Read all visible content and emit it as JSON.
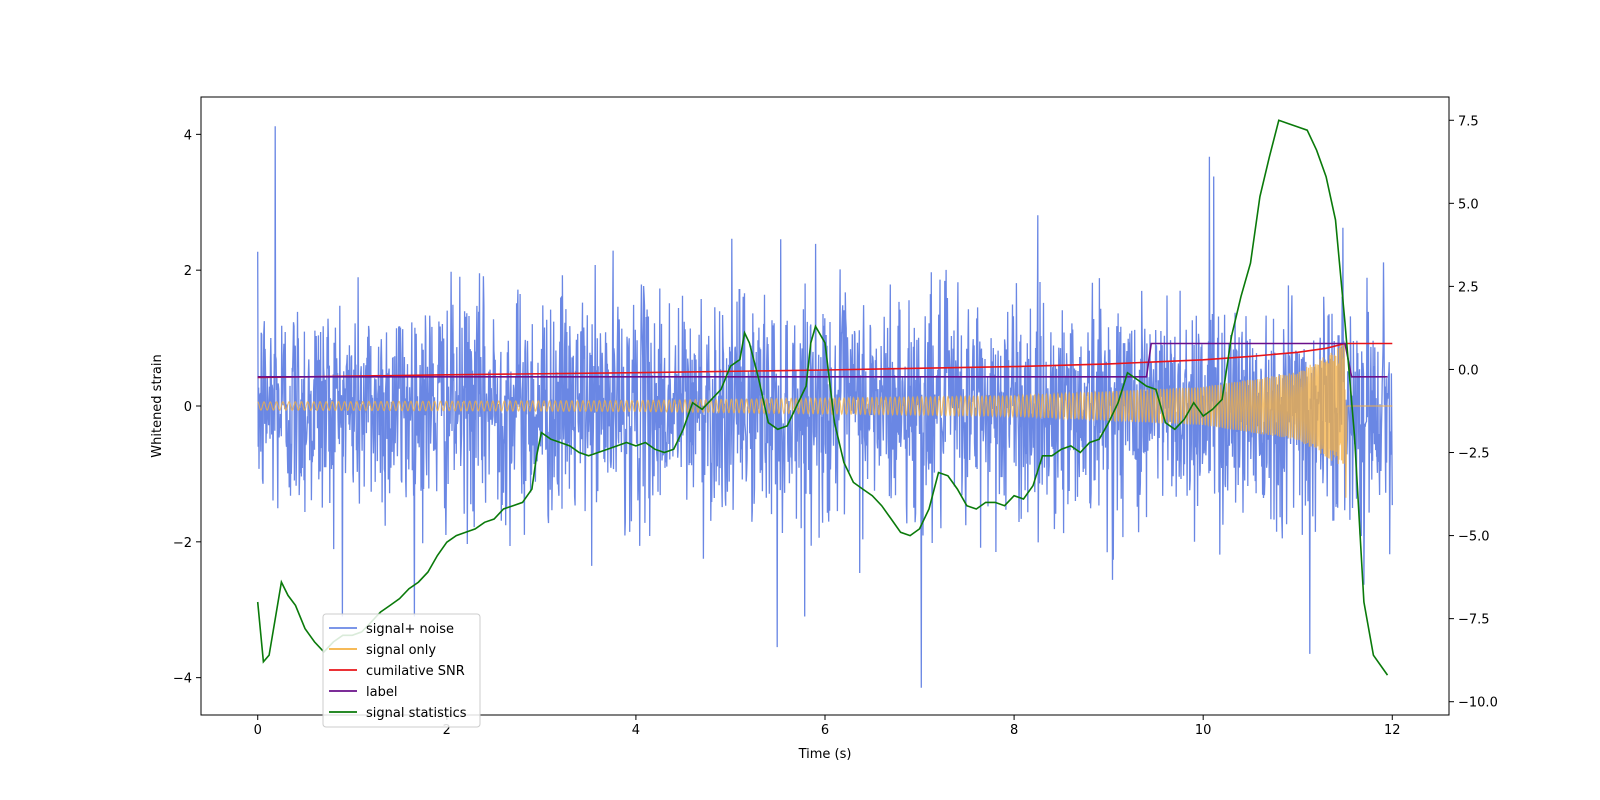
{
  "chart_data": {
    "type": "line",
    "xlabel": "Time (s)",
    "ylabel": "Whitened strain",
    "xlim": [
      -0.6,
      12.6
    ],
    "ylim": [
      -4.55,
      4.55
    ],
    "y2lim": [
      -10.4,
      8.2
    ],
    "xticks": [
      0,
      2,
      4,
      6,
      8,
      10,
      12
    ],
    "xtick_labels": [
      "0",
      "2",
      "4",
      "6",
      "8",
      "10",
      "12"
    ],
    "yticks": [
      -4,
      -2,
      0,
      2,
      4
    ],
    "ytick_labels": [
      "−4",
      "−2",
      "0",
      "2",
      "4"
    ],
    "y2ticks": [
      -10,
      -7.5,
      -5,
      -2.5,
      0,
      2.5,
      5,
      7.5
    ],
    "y2tick_labels": [
      "−10.0",
      "−7.5",
      "−5.0",
      "−2.5",
      "0.0",
      "2.5",
      "5.0",
      "7.5"
    ],
    "legend_location": "lower-left",
    "series": [
      {
        "name": "signal+ noise",
        "color": "#6a87e4",
        "axis": "left",
        "description": "whitened noise with injected chirp",
        "x_range": [
          0,
          12
        ],
        "noise_sigma": 1.05,
        "peak_values": [
          4.12,
          3.67,
          3.38,
          -4.15,
          -3.55,
          -3.65
        ]
      },
      {
        "name": "signal only",
        "color": "#f5b041",
        "axis": "left",
        "description": "chirp waveform, amplitude growing until merger",
        "x_range": [
          0,
          12
        ],
        "merger_time": 11.5,
        "amplitude_envelope": {
          "x": [
            0,
            4,
            8,
            10,
            11,
            11.3,
            11.5
          ],
          "y": [
            0.06,
            0.08,
            0.15,
            0.28,
            0.5,
            0.75,
            0.95
          ]
        }
      },
      {
        "name": "cumilative SNR",
        "color": "#e8141a",
        "axis": "left",
        "x": [
          0,
          2,
          4,
          6,
          8,
          9,
          10,
          10.5,
          11,
          11.3,
          11.5,
          12
        ],
        "y": [
          0.42,
          0.46,
          0.49,
          0.53,
          0.58,
          0.62,
          0.68,
          0.73,
          0.79,
          0.85,
          0.92,
          0.92
        ]
      },
      {
        "name": "label",
        "color": "#6a0f8a",
        "axis": "left",
        "x": [
          0,
          9.4,
          9.45,
          11.5,
          11.57,
          11.95
        ],
        "y": [
          0.43,
          0.43,
          0.92,
          0.92,
          0.43,
          0.43
        ]
      },
      {
        "name": "signal statistics",
        "color": "#0a7a0a",
        "axis": "right",
        "x": [
          0,
          0.06,
          0.12,
          0.18,
          0.25,
          0.32,
          0.4,
          0.5,
          0.6,
          0.7,
          0.8,
          0.9,
          1.0,
          1.1,
          1.2,
          1.3,
          1.4,
          1.5,
          1.6,
          1.7,
          1.8,
          1.9,
          2.0,
          2.1,
          2.2,
          2.3,
          2.4,
          2.5,
          2.6,
          2.7,
          2.8,
          2.9,
          2.95,
          3.0,
          3.1,
          3.2,
          3.3,
          3.4,
          3.5,
          3.6,
          3.7,
          3.8,
          3.9,
          4.0,
          4.1,
          4.2,
          4.3,
          4.4,
          4.5,
          4.6,
          4.7,
          4.8,
          4.9,
          5.0,
          5.1,
          5.15,
          5.2,
          5.3,
          5.4,
          5.5,
          5.6,
          5.7,
          5.8,
          5.85,
          5.9,
          6.0,
          6.1,
          6.2,
          6.3,
          6.4,
          6.5,
          6.6,
          6.7,
          6.8,
          6.9,
          7.0,
          7.1,
          7.2,
          7.3,
          7.4,
          7.5,
          7.6,
          7.7,
          7.8,
          7.9,
          8.0,
          8.1,
          8.2,
          8.3,
          8.4,
          8.5,
          8.6,
          8.7,
          8.8,
          8.9,
          9.0,
          9.1,
          9.2,
          9.3,
          9.4,
          9.5,
          9.6,
          9.7,
          9.8,
          9.9,
          10.0,
          10.1,
          10.2,
          10.3,
          10.4,
          10.5,
          10.6,
          10.7,
          10.8,
          10.9,
          11.0,
          11.1,
          11.2,
          11.3,
          11.4,
          11.5,
          11.6,
          11.7,
          11.8,
          11.9,
          11.95
        ],
        "y": [
          -7.0,
          -8.8,
          -8.6,
          -7.6,
          -6.4,
          -6.8,
          -7.1,
          -7.8,
          -8.2,
          -8.5,
          -8.2,
          -8.0,
          -8.0,
          -7.9,
          -7.6,
          -7.3,
          -7.1,
          -6.9,
          -6.6,
          -6.4,
          -6.1,
          -5.6,
          -5.2,
          -5.0,
          -4.9,
          -4.8,
          -4.6,
          -4.5,
          -4.2,
          -4.1,
          -4.0,
          -3.6,
          -2.6,
          -1.9,
          -2.1,
          -2.2,
          -2.3,
          -2.5,
          -2.6,
          -2.5,
          -2.4,
          -2.3,
          -2.2,
          -2.3,
          -2.2,
          -2.4,
          -2.5,
          -2.4,
          -1.8,
          -1.0,
          -1.2,
          -0.9,
          -0.6,
          0.1,
          0.3,
          1.1,
          0.8,
          -0.3,
          -1.6,
          -1.8,
          -1.7,
          -1.1,
          -0.5,
          0.8,
          1.3,
          0.8,
          -1.6,
          -2.8,
          -3.4,
          -3.6,
          -3.8,
          -4.1,
          -4.5,
          -4.9,
          -5.0,
          -4.8,
          -4.2,
          -3.1,
          -3.2,
          -3.6,
          -4.1,
          -4.2,
          -4.0,
          -4.0,
          -4.1,
          -3.8,
          -3.9,
          -3.5,
          -2.6,
          -2.6,
          -2.4,
          -2.3,
          -2.5,
          -2.2,
          -2.1,
          -1.6,
          -1.0,
          -0.1,
          -0.3,
          -0.5,
          -0.6,
          -1.6,
          -1.8,
          -1.5,
          -1.0,
          -1.4,
          -1.2,
          -0.9,
          1.0,
          2.2,
          3.2,
          5.2,
          6.4,
          7.5,
          7.4,
          7.3,
          7.2,
          6.6,
          5.8,
          4.5,
          1.4,
          -2.0,
          -7.0,
          -8.6,
          -9.0,
          -9.2
        ]
      }
    ]
  }
}
